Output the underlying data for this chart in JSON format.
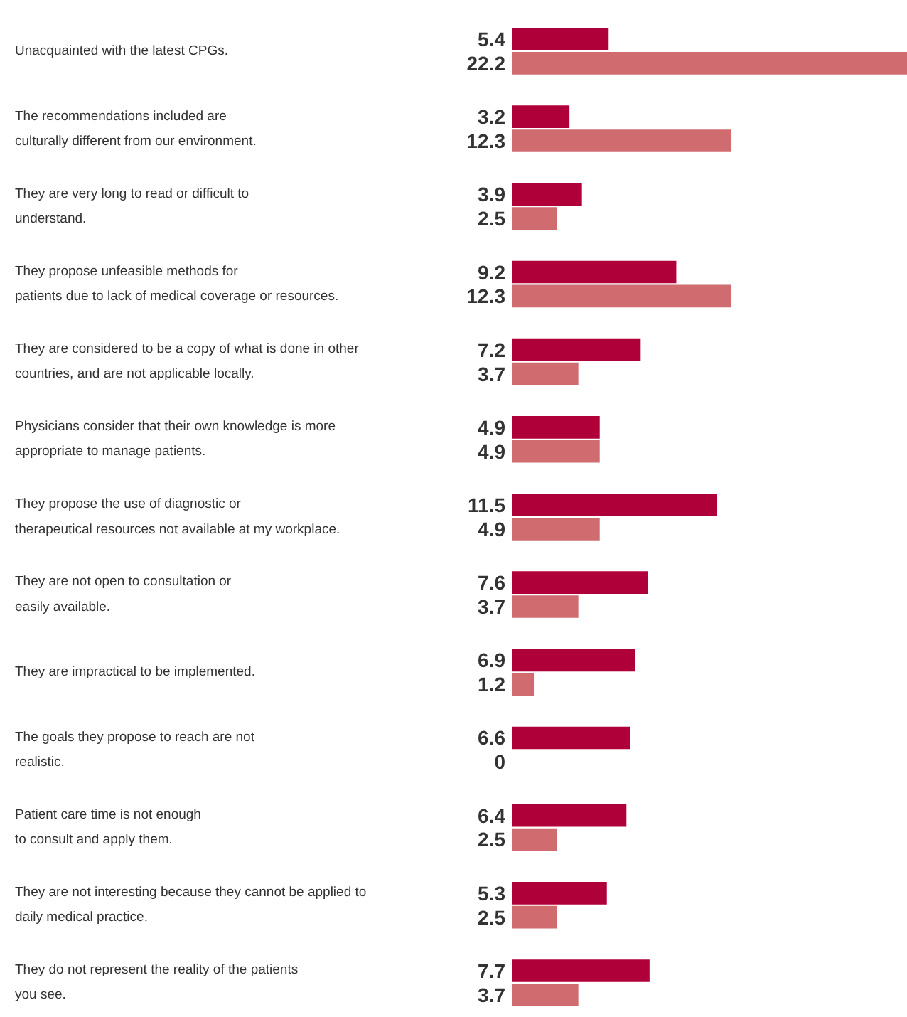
{
  "chart_data": {
    "type": "bar",
    "orientation": "horizontal",
    "categories": [
      "Unacquainted with the latest CPGs.",
      "The recommendations included are\nculturally different from our environment.",
      "They are very long to read or difficult to\nunderstand.",
      "They propose unfeasible methods for\npatients due to lack of medical coverage or resources.",
      "They are considered to be a copy of what is done in other\ncountries, and are not applicable locally.",
      "Physicians consider that their own knowledge is more\nappropriate to manage patients.",
      "They propose the use of diagnostic or\ntherapeutical resources not available at my workplace.",
      "They are not open to consultation or\neasily available.",
      "They are impractical to be implemented.",
      "The goals they propose to reach are not\nrealistic.",
      "Patient care time is not enough\nto consult and apply them.",
      "They are not interesting because they cannot be applied to\ndaily medical practice.",
      "They do not represent the reality of the patients\nyou see."
    ],
    "series": [
      {
        "color": "#b0003a",
        "values": [
          5.4,
          3.2,
          3.9,
          9.2,
          7.2,
          4.9,
          11.5,
          7.6,
          6.9,
          6.6,
          6.4,
          5.3,
          7.7
        ]
      },
      {
        "color": "#d06b70",
        "values": [
          22.2,
          12.3,
          2.5,
          12.3,
          3.7,
          4.9,
          4.9,
          3.7,
          1.2,
          0,
          2.5,
          2.5,
          3.7
        ]
      }
    ],
    "xlim": [
      0,
      22.2
    ],
    "data_labels": true,
    "tick_labels": false,
    "grid": false
  }
}
